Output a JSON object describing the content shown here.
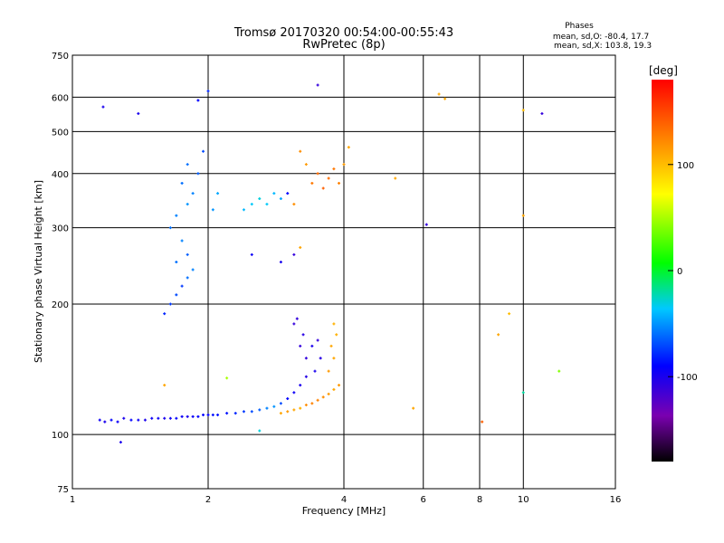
{
  "chart_data": {
    "type": "scatter",
    "title": "Tromsø 20170320 00:54:00-00:55:43",
    "subtitle": "RwPretec (8p)",
    "xlabel": "Frequency [MHz]",
    "ylabel": "Stationary phase Virtual Height [km]",
    "x_scale": "log",
    "y_scale": "log",
    "xlim": [
      1,
      16
    ],
    "ylim": [
      75,
      750
    ],
    "grid": true,
    "x_ticks": [
      1,
      2,
      4,
      6,
      8,
      10,
      16
    ],
    "y_ticks": [
      75,
      100,
      200,
      300,
      400,
      500,
      600,
      750
    ],
    "phase_info": {
      "title": "Phases",
      "line1": "mean, sd,O: -80.4, 17.7",
      "line2": "mean, sd,X: 103.8, 19.3"
    },
    "colorbar": {
      "label": "[deg]",
      "range": [
        -180,
        180
      ],
      "ticks": [
        -100,
        0,
        100
      ]
    },
    "series": [
      {
        "values": [
          {
            "x": 1.15,
            "y": 108,
            "phase": -95
          },
          {
            "x": 1.18,
            "y": 107,
            "phase": -100
          },
          {
            "x": 1.22,
            "y": 108,
            "phase": -90
          },
          {
            "x": 1.26,
            "y": 107,
            "phase": -95
          },
          {
            "x": 1.3,
            "y": 109,
            "phase": -100
          },
          {
            "x": 1.35,
            "y": 108,
            "phase": -90
          },
          {
            "x": 1.4,
            "y": 108,
            "phase": -95
          },
          {
            "x": 1.45,
            "y": 108,
            "phase": -100
          },
          {
            "x": 1.5,
            "y": 109,
            "phase": -95
          },
          {
            "x": 1.55,
            "y": 109,
            "phase": -95
          },
          {
            "x": 1.6,
            "y": 109,
            "phase": -100
          },
          {
            "x": 1.65,
            "y": 109,
            "phase": -95
          },
          {
            "x": 1.7,
            "y": 109,
            "phase": -90
          },
          {
            "x": 1.75,
            "y": 110,
            "phase": -95
          },
          {
            "x": 1.8,
            "y": 110,
            "phase": -100
          },
          {
            "x": 1.85,
            "y": 110,
            "phase": -95
          },
          {
            "x": 1.9,
            "y": 110,
            "phase": -90
          },
          {
            "x": 1.95,
            "y": 111,
            "phase": -90
          },
          {
            "x": 2.0,
            "y": 111,
            "phase": -90
          },
          {
            "x": 2.05,
            "y": 111,
            "phase": -85
          },
          {
            "x": 2.1,
            "y": 111,
            "phase": -85
          },
          {
            "x": 2.2,
            "y": 112,
            "phase": -85
          },
          {
            "x": 2.3,
            "y": 112,
            "phase": -80
          },
          {
            "x": 2.4,
            "y": 113,
            "phase": -75
          },
          {
            "x": 2.5,
            "y": 113,
            "phase": -70
          },
          {
            "x": 2.6,
            "y": 114,
            "phase": -65
          },
          {
            "x": 2.7,
            "y": 115,
            "phase": -55
          },
          {
            "x": 2.8,
            "y": 116,
            "phase": -50
          },
          {
            "x": 2.9,
            "y": 118,
            "phase": -70
          },
          {
            "x": 3.0,
            "y": 121,
            "phase": -90
          },
          {
            "x": 3.1,
            "y": 125,
            "phase": -95
          },
          {
            "x": 3.2,
            "y": 130,
            "phase": -100
          },
          {
            "x": 3.3,
            "y": 136,
            "phase": -105
          },
          {
            "x": 3.3,
            "y": 150,
            "phase": -110
          },
          {
            "x": 3.2,
            "y": 160,
            "phase": -110
          },
          {
            "x": 3.25,
            "y": 170,
            "phase": -105
          },
          {
            "x": 3.4,
            "y": 160,
            "phase": -100
          },
          {
            "x": 3.5,
            "y": 165,
            "phase": -110
          },
          {
            "x": 3.55,
            "y": 150,
            "phase": -105
          },
          {
            "x": 3.45,
            "y": 140,
            "phase": -100
          },
          {
            "x": 3.1,
            "y": 180,
            "phase": -110
          },
          {
            "x": 3.15,
            "y": 185,
            "phase": -110
          }
        ]
      },
      {
        "values": [
          {
            "x": 2.9,
            "y": 112,
            "phase": 110
          },
          {
            "x": 3.0,
            "y": 113,
            "phase": 115
          },
          {
            "x": 3.1,
            "y": 114,
            "phase": 110
          },
          {
            "x": 3.2,
            "y": 115,
            "phase": 105
          },
          {
            "x": 3.3,
            "y": 117,
            "phase": 120
          },
          {
            "x": 3.4,
            "y": 118,
            "phase": 125
          },
          {
            "x": 3.5,
            "y": 120,
            "phase": 125
          },
          {
            "x": 3.6,
            "y": 122,
            "phase": 120
          },
          {
            "x": 3.7,
            "y": 124,
            "phase": 115
          },
          {
            "x": 3.8,
            "y": 127,
            "phase": 110
          },
          {
            "x": 3.9,
            "y": 130,
            "phase": 115
          },
          {
            "x": 3.7,
            "y": 140,
            "phase": 115
          },
          {
            "x": 3.8,
            "y": 150,
            "phase": 110
          },
          {
            "x": 3.75,
            "y": 160,
            "phase": 110
          },
          {
            "x": 3.85,
            "y": 170,
            "phase": 105
          },
          {
            "x": 3.8,
            "y": 180,
            "phase": 105
          }
        ]
      },
      {
        "values": [
          {
            "x": 1.6,
            "y": 190,
            "phase": -80
          },
          {
            "x": 1.65,
            "y": 200,
            "phase": -75
          },
          {
            "x": 1.7,
            "y": 210,
            "phase": -70
          },
          {
            "x": 1.75,
            "y": 220,
            "phase": -75
          },
          {
            "x": 1.8,
            "y": 230,
            "phase": -60
          },
          {
            "x": 1.85,
            "y": 240,
            "phase": -55
          },
          {
            "x": 1.7,
            "y": 250,
            "phase": -60
          },
          {
            "x": 1.8,
            "y": 260,
            "phase": -65
          },
          {
            "x": 1.75,
            "y": 280,
            "phase": -55
          },
          {
            "x": 1.65,
            "y": 300,
            "phase": -60
          },
          {
            "x": 1.7,
            "y": 320,
            "phase": -55
          },
          {
            "x": 1.8,
            "y": 340,
            "phase": -50
          },
          {
            "x": 1.85,
            "y": 360,
            "phase": -55
          },
          {
            "x": 1.75,
            "y": 380,
            "phase": -60
          },
          {
            "x": 1.9,
            "y": 400,
            "phase": -65
          },
          {
            "x": 1.8,
            "y": 420,
            "phase": -60
          },
          {
            "x": 1.95,
            "y": 450,
            "phase": -70
          },
          {
            "x": 2.05,
            "y": 330,
            "phase": -50
          },
          {
            "x": 2.1,
            "y": 360,
            "phase": -45
          }
        ]
      },
      {
        "values": [
          {
            "x": 2.4,
            "y": 330,
            "phase": -40
          },
          {
            "x": 2.5,
            "y": 340,
            "phase": -35
          },
          {
            "x": 2.6,
            "y": 350,
            "phase": -30
          },
          {
            "x": 2.7,
            "y": 340,
            "phase": -35
          },
          {
            "x": 2.8,
            "y": 360,
            "phase": -40
          },
          {
            "x": 2.9,
            "y": 350,
            "phase": -45
          },
          {
            "x": 3.0,
            "y": 360,
            "phase": -90
          },
          {
            "x": 2.5,
            "y": 260,
            "phase": -95
          },
          {
            "x": 2.9,
            "y": 250,
            "phase": -100
          },
          {
            "x": 3.1,
            "y": 260,
            "phase": -110
          },
          {
            "x": 3.2,
            "y": 270,
            "phase": 110
          },
          {
            "x": 3.1,
            "y": 340,
            "phase": 120
          },
          {
            "x": 3.2,
            "y": 450,
            "phase": 120
          },
          {
            "x": 3.3,
            "y": 420,
            "phase": 115
          },
          {
            "x": 3.4,
            "y": 380,
            "phase": 130
          },
          {
            "x": 3.5,
            "y": 400,
            "phase": 135
          },
          {
            "x": 3.6,
            "y": 370,
            "phase": 140
          },
          {
            "x": 3.7,
            "y": 390,
            "phase": 135
          },
          {
            "x": 3.8,
            "y": 410,
            "phase": 130
          },
          {
            "x": 3.9,
            "y": 380,
            "phase": 125
          },
          {
            "x": 4.0,
            "y": 420,
            "phase": 115
          },
          {
            "x": 4.1,
            "y": 460,
            "phase": 110
          }
        ]
      },
      {
        "values": [
          {
            "x": 1.17,
            "y": 570,
            "phase": -100
          },
          {
            "x": 1.4,
            "y": 550,
            "phase": -100
          },
          {
            "x": 1.9,
            "y": 590,
            "phase": -90
          },
          {
            "x": 2.0,
            "y": 620,
            "phase": -80
          },
          {
            "x": 3.5,
            "y": 640,
            "phase": -110
          },
          {
            "x": 5.2,
            "y": 390,
            "phase": 110
          },
          {
            "x": 6.1,
            "y": 305,
            "phase": -110
          },
          {
            "x": 6.5,
            "y": 610,
            "phase": 110
          },
          {
            "x": 6.7,
            "y": 595,
            "phase": 110
          },
          {
            "x": 10.0,
            "y": 560,
            "phase": 100
          },
          {
            "x": 11.0,
            "y": 550,
            "phase": -110
          },
          {
            "x": 10.0,
            "y": 320,
            "phase": 110
          },
          {
            "x": 5.7,
            "y": 115,
            "phase": 110
          },
          {
            "x": 8.8,
            "y": 170,
            "phase": 110
          },
          {
            "x": 9.3,
            "y": 190,
            "phase": 100
          },
          {
            "x": 10.0,
            "y": 125,
            "phase": -20
          },
          {
            "x": 12.0,
            "y": 140,
            "phase": 40
          },
          {
            "x": 8.1,
            "y": 107,
            "phase": 140
          },
          {
            "x": 1.28,
            "y": 96,
            "phase": -100
          },
          {
            "x": 1.6,
            "y": 130,
            "phase": 110
          },
          {
            "x": 2.2,
            "y": 135,
            "phase": 50
          },
          {
            "x": 2.6,
            "y": 102,
            "phase": -30
          }
        ]
      }
    ]
  }
}
